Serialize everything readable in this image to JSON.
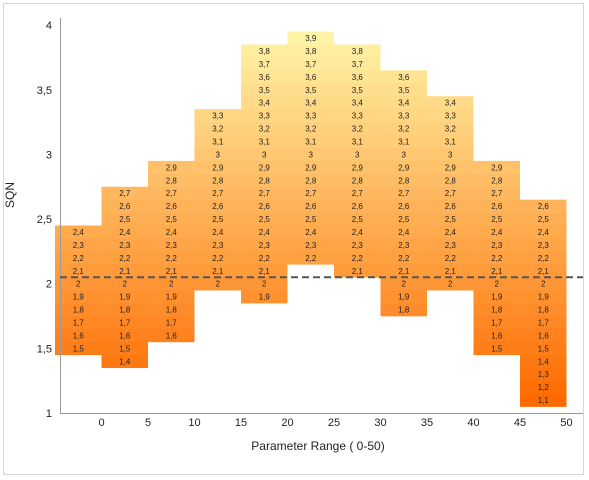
{
  "chart_data": {
    "type": "bar",
    "xlabel": "Parameter Range ( 0-50)",
    "ylabel": "SQN",
    "ylim": [
      1,
      4
    ],
    "y_ticks": [
      "1",
      "1,5",
      "2",
      "2,5",
      "3",
      "3,5",
      "4"
    ],
    "x_ticks": [
      "0",
      "5",
      "10",
      "15",
      "20",
      "25",
      "30",
      "35",
      "40",
      "45",
      "50"
    ],
    "reference_line": {
      "y": 2.05,
      "style": "dashed"
    },
    "colors": {
      "top": "#fff3a6",
      "bottom": "#ff6a00",
      "reference_line": "#555555"
    },
    "columns": [
      {
        "x": -2.5,
        "labels": [
          "2,4",
          "2,3",
          "2,2",
          "2,1",
          "2",
          "1,9",
          "1,8",
          "1,7",
          "1,6",
          "1,5"
        ]
      },
      {
        "x": 2.5,
        "labels": [
          "2,7",
          "2,6",
          "2,5",
          "2,4",
          "2,3",
          "2,2",
          "2,1",
          "2",
          "1,9",
          "1,8",
          "1,7",
          "1,6",
          "1,5",
          "1,4"
        ]
      },
      {
        "x": 7.5,
        "labels": [
          "2,9",
          "2,8",
          "2,7",
          "2,6",
          "2,5",
          "2,4",
          "2,3",
          "2,2",
          "2,1",
          "2",
          "1,9",
          "1,8",
          "1,7",
          "1,6"
        ]
      },
      {
        "x": 12.5,
        "labels": [
          "3,3",
          "3,2",
          "3,1",
          "3",
          "2,9",
          "2,8",
          "2,7",
          "2,6",
          "2,5",
          "2,4",
          "2,3",
          "2,2",
          "2,1",
          "2"
        ]
      },
      {
        "x": 17.5,
        "labels": [
          "3,8",
          "3,7",
          "3,6",
          "3,5",
          "3,4",
          "3,3",
          "3,2",
          "3,1",
          "3",
          "2,9",
          "2,8",
          "2,7",
          "2,6",
          "2,5",
          "2,4",
          "2,3",
          "2,2",
          "2,1",
          "2",
          "1,9"
        ]
      },
      {
        "x": 22.5,
        "labels": [
          "3,9",
          "3,8",
          "3,7",
          "3,6",
          "3,5",
          "3,4",
          "3,3",
          "3,2",
          "3,1",
          "3",
          "2,9",
          "2,8",
          "2,7",
          "2,6",
          "2,5",
          "2,4",
          "2,3",
          "2,2"
        ]
      },
      {
        "x": 27.5,
        "labels": [
          "3,8",
          "3,7",
          "3,6",
          "3,5",
          "3,4",
          "3,3",
          "3,2",
          "3,1",
          "3",
          "2,9",
          "2,8",
          "2,7",
          "2,6",
          "2,5",
          "2,4",
          "2,3",
          "2,2",
          "2,1"
        ]
      },
      {
        "x": 32.5,
        "labels": [
          "3,6",
          "3,5",
          "3,4",
          "3,3",
          "3,2",
          "3,1",
          "3",
          "2,9",
          "2,8",
          "2,7",
          "2,6",
          "2,5",
          "2,4",
          "2,3",
          "2,2",
          "2,1",
          "2",
          "1,9",
          "1,8"
        ]
      },
      {
        "x": 37.5,
        "labels": [
          "3,4",
          "3,3",
          "3,2",
          "3,1",
          "3",
          "2,9",
          "2,8",
          "2,7",
          "2,6",
          "2,5",
          "2,4",
          "2,3",
          "2,2",
          "2,1",
          "2"
        ]
      },
      {
        "x": 42.5,
        "labels": [
          "2,9",
          "2,8",
          "2,7",
          "2,6",
          "2,5",
          "2,4",
          "2,3",
          "2,2",
          "2,1",
          "2",
          "1,9",
          "1,8",
          "1,7",
          "1,6",
          "1,5"
        ]
      },
      {
        "x": 47.5,
        "labels": [
          "2,6",
          "2,5",
          "2,4",
          "2,3",
          "2,2",
          "2,1",
          "2",
          "1,9",
          "1,8",
          "1,7",
          "1,6",
          "1,5",
          "1,4",
          "1,3",
          "1,2",
          "1,1"
        ]
      }
    ]
  }
}
